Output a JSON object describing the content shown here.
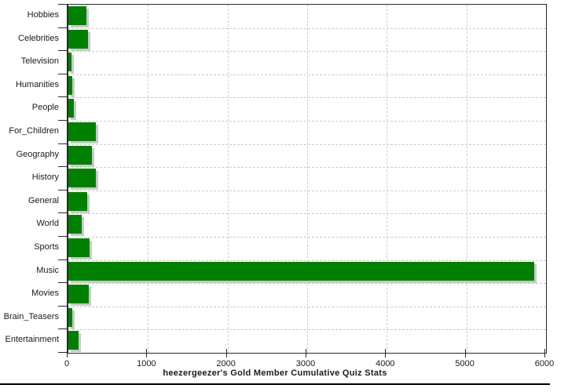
{
  "chart_data": {
    "type": "bar",
    "orientation": "horizontal",
    "title": "heezergeezer's Gold Member Cumulative Quiz Stats",
    "categories": [
      "Hobbies",
      "Celebrities",
      "Television",
      "Humanities",
      "People",
      "For_Children",
      "Geography",
      "History",
      "General",
      "World",
      "Sports",
      "Music",
      "Movies",
      "Brain_Teasers",
      "Entertainment"
    ],
    "values": [
      230,
      245,
      40,
      50,
      70,
      345,
      295,
      350,
      240,
      170,
      265,
      5855,
      260,
      50,
      130
    ],
    "xlabel": "",
    "ylabel": "",
    "xlim": [
      0,
      6000
    ],
    "xticks": [
      0,
      1000,
      2000,
      3000,
      4000,
      5000,
      6000
    ],
    "grid": "dashed",
    "legend": "none",
    "colors": {
      "bar": "#008000",
      "bar_shadow": "#c9c9c9",
      "grid": "#cccccc",
      "axis": "#2a2a2a",
      "text": "#1a1a1a",
      "background": "#ffffff"
    }
  }
}
